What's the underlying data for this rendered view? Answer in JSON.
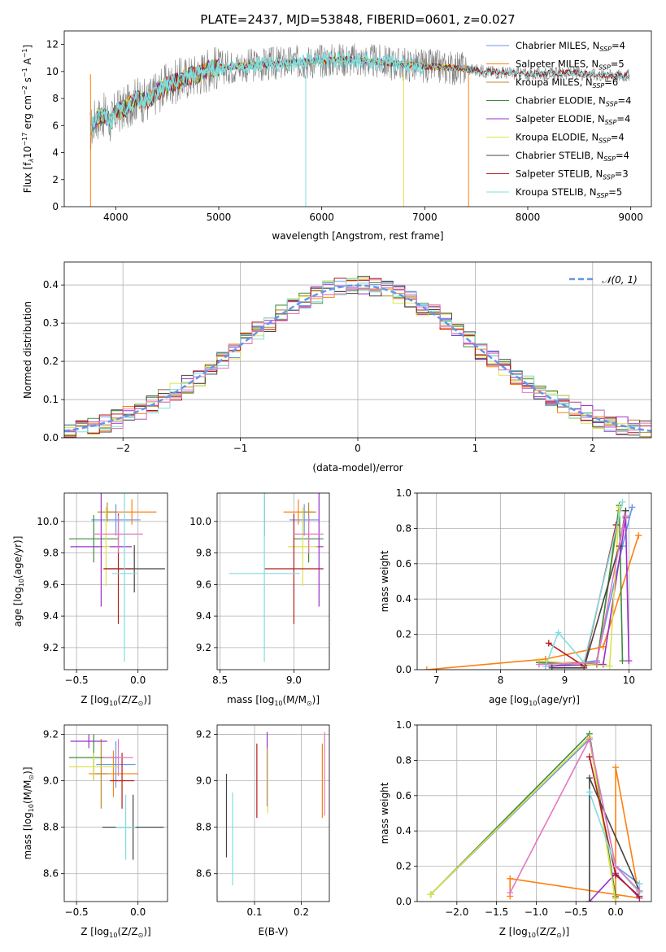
{
  "figure": {
    "title": "PLATE=2437, MJD=53848, FIBERID=0601, z=0.027"
  },
  "colors": [
    "#6495ed",
    "#ff7f0e",
    "#bc8a30",
    "#3e8a3e",
    "#9b30c8",
    "#dde24a",
    "#444444",
    "#b31b1b",
    "#7fdede",
    "#e377c2"
  ],
  "chart_data": [
    {
      "id": "spectrum",
      "type": "line",
      "xlabel": "wavelength [Angstrom, rest frame]",
      "ylabel": "Flux [f",
      "ylabel_parts": {
        "a": "Flux [f",
        "b": "λ",
        "c": "10",
        "d": "−17",
        "e": " erg cm",
        "f": "−2",
        "g": " s",
        "h": "−1",
        "i": " A",
        "j": "−1",
        "k": "]"
      },
      "xlim": [
        3500,
        9200
      ],
      "ylim": [
        0,
        13
      ],
      "xticks": [
        4000,
        5000,
        6000,
        7000,
        8000,
        9000
      ],
      "yticks": [
        0,
        2,
        4,
        6,
        8,
        10,
        12
      ],
      "grid": false,
      "legend_position": "top-right",
      "legend": [
        {
          "name": "Chabrier MILES, N",
          "sub": "SSP",
          "suffix": "=4",
          "color": "#6495ed"
        },
        {
          "name": "Salpeter MILES, N",
          "sub": "SSP",
          "suffix": "=5",
          "color": "#ff7f0e"
        },
        {
          "name": "Kroupa MILES, N",
          "sub": "SSP",
          "suffix": "=6",
          "color": "#bc8a30"
        },
        {
          "name": "Chabrier ELODIE, N",
          "sub": "SSP",
          "suffix": "=4",
          "color": "#3e8a3e"
        },
        {
          "name": "Salpeter ELODIE, N",
          "sub": "SSP",
          "suffix": "=4",
          "color": "#9b30c8"
        },
        {
          "name": "Kroupa ELODIE, N",
          "sub": "SSP",
          "suffix": "=4",
          "color": "#dde24a"
        },
        {
          "name": "Chabrier STELIB, N",
          "sub": "SSP",
          "suffix": "=4",
          "color": "#444444"
        },
        {
          "name": "Salpeter STELIB, N",
          "sub": "SSP",
          "suffix": "=3",
          "color": "#b31b1b"
        },
        {
          "name": "Kroupa STELIB, N",
          "sub": "SSP",
          "suffix": "=5",
          "color": "#7fdede"
        }
      ],
      "data_curve": {
        "x": [
          3750,
          3800,
          3900,
          3950,
          4000,
          4100,
          4200,
          4300,
          4400,
          4500,
          4600,
          4700,
          4800,
          4900,
          5000,
          5200,
          5400,
          5600,
          5800,
          6000,
          6200,
          6400,
          6600,
          6800,
          7000,
          7200,
          7400,
          7600,
          7800,
          8000,
          8200,
          8400,
          8600,
          8800,
          9000
        ],
        "y": [
          5.5,
          6.5,
          6.8,
          6.2,
          7.0,
          7.3,
          8.0,
          7.8,
          8.5,
          9.0,
          9.3,
          9.6,
          9.8,
          10.2,
          10.3,
          10.4,
          10.5,
          10.6,
          10.7,
          10.8,
          10.9,
          10.8,
          10.7,
          10.5,
          10.4,
          10.3,
          10.2,
          10.0,
          9.9,
          9.8,
          9.85,
          9.9,
          9.8,
          9.7,
          9.7
        ]
      },
      "noise_amplitude": 1.3
    },
    {
      "id": "residuals",
      "type": "bar",
      "xlabel": "(data-model)/error",
      "ylabel": "Normed distribution",
      "xlim": [
        -2.5,
        2.5
      ],
      "ylim": [
        0,
        0.46
      ],
      "xticks": [
        -2,
        -1,
        0,
        1,
        2
      ],
      "xtick_labels": [
        "−2",
        "−1",
        "0",
        "1",
        "2"
      ],
      "yticks": [
        0.0,
        0.1,
        0.2,
        0.3,
        0.4
      ],
      "ytick_labels": [
        "0.0",
        "0.1",
        "0.2",
        "0.3",
        "0.4"
      ],
      "grid": true,
      "legend_position": "top-right",
      "legend": [
        {
          "name": "𝒩(0, 1)",
          "color": "#6495ed",
          "style": "dashed"
        }
      ],
      "bin_width": 0.1,
      "series_count": 10
    },
    {
      "id": "age-vs-Z",
      "type": "scatter",
      "xlabel": "Z [log",
      "xlabel_parts": {
        "a": "Z [log",
        "b": "10",
        "c": "(Z/Z",
        "d": "⊙",
        "e": ")]"
      },
      "ylabel_parts": {
        "a": "age  [log",
        "b": "10",
        "c": "(age/yr)]"
      },
      "xlim": [
        -0.6,
        0.24
      ],
      "ylim": [
        9.06,
        10.18
      ],
      "xticks": [
        -0.5,
        0.0
      ],
      "xtick_labels": [
        "−0.5",
        "0.0"
      ],
      "yticks": [
        9.2,
        9.4,
        9.6,
        9.8,
        10.0
      ],
      "ytick_labels": [
        "9.2",
        "9.4",
        "9.6",
        "9.8",
        "10.0"
      ],
      "grid": true,
      "points": [
        {
          "x": -0.18,
          "y": 10.01,
          "xerr": 0.2,
          "yerr": 0.1,
          "color": "#6495ed"
        },
        {
          "x": -0.05,
          "y": 10.06,
          "xerr": 0.2,
          "yerr": 0.08,
          "color": "#ff7f0e"
        },
        {
          "x": -0.25,
          "y": 10.06,
          "xerr": 0.08,
          "yerr": 0.06,
          "color": "#bc8a30"
        },
        {
          "x": -0.36,
          "y": 9.89,
          "xerr": 0.2,
          "yerr": 0.15,
          "color": "#3e8a3e"
        },
        {
          "x": -0.3,
          "y": 9.84,
          "xerr": 0.25,
          "yerr": 0.38,
          "color": "#9b30c8"
        },
        {
          "x": -0.26,
          "y": 9.84,
          "xerr": 0.03,
          "yerr": 0.25,
          "color": "#dde24a"
        },
        {
          "x": -0.03,
          "y": 9.7,
          "xerr": 0.25,
          "yerr": 0.15,
          "color": "#444444"
        },
        {
          "x": -0.16,
          "y": 9.7,
          "xerr": 0.12,
          "yerr": 0.35,
          "color": "#b31b1b"
        },
        {
          "x": -0.11,
          "y": 9.67,
          "xerr": 0.1,
          "yerr": 0.56,
          "color": "#7fdede"
        },
        {
          "x": -0.16,
          "y": 9.92,
          "xerr": 0.2,
          "yerr": 0.12,
          "color": "#e377c2"
        }
      ]
    },
    {
      "id": "age-vs-mass",
      "type": "scatter",
      "xlabel_parts": {
        "a": "mass [log",
        "b": "10",
        "c": "(M/M",
        "d": "⊙",
        "e": ")]"
      },
      "xlim": [
        8.48,
        9.24
      ],
      "ylim": [
        9.06,
        10.18
      ],
      "xticks": [
        8.5,
        9.0
      ],
      "xtick_labels": [
        "8.5",
        "9.0"
      ],
      "yticks": [
        9.2,
        9.4,
        9.6,
        9.8,
        10.0
      ],
      "ytick_labels": [
        "9.2",
        "9.4",
        "9.6",
        "9.8",
        "10.0"
      ],
      "grid": true,
      "points": [
        {
          "x": 9.07,
          "y": 10.01,
          "xerr": 0.1,
          "yerr": 0.1,
          "color": "#6495ed"
        },
        {
          "x": 9.03,
          "y": 10.06,
          "xerr": 0.1,
          "yerr": 0.08,
          "color": "#ff7f0e"
        },
        {
          "x": 9.1,
          "y": 10.06,
          "xerr": 0.05,
          "yerr": 0.06,
          "color": "#bc8a30"
        },
        {
          "x": 9.1,
          "y": 9.89,
          "xerr": 0.1,
          "yerr": 0.15,
          "color": "#3e8a3e"
        },
        {
          "x": 9.17,
          "y": 9.84,
          "xerr": 0.03,
          "yerr": 0.38,
          "color": "#9b30c8"
        },
        {
          "x": 9.06,
          "y": 9.84,
          "xerr": 0.1,
          "yerr": 0.25,
          "color": "#dde24a"
        },
        {
          "x": 8.8,
          "y": 10.06,
          "xerr": 0.0,
          "yerr": 0.15,
          "color": "#444444"
        },
        {
          "x": 9.0,
          "y": 9.7,
          "xerr": 0.2,
          "yerr": 0.35,
          "color": "#b31b1b"
        },
        {
          "x": 8.8,
          "y": 9.67,
          "xerr": 0.24,
          "yerr": 0.56,
          "color": "#7fdede"
        },
        {
          "x": 9.1,
          "y": 9.92,
          "xerr": 0.1,
          "yerr": 0.12,
          "color": "#e377c2"
        }
      ]
    },
    {
      "id": "weight-vs-age",
      "type": "line",
      "xlabel_parts": {
        "a": "age  [log",
        "b": "10",
        "c": "(age/yr)]"
      },
      "ylabel": "mass weight",
      "xlim": [
        6.7,
        10.35
      ],
      "ylim": [
        0.0,
        1.0
      ],
      "xticks": [
        7,
        8,
        9,
        10
      ],
      "xtick_labels": [
        "7",
        "8",
        "9",
        "10"
      ],
      "yticks": [
        0.0,
        0.2,
        0.4,
        0.6,
        0.8,
        1.0
      ],
      "ytick_labels": [
        "0.0",
        "0.2",
        "0.4",
        "0.6",
        "0.8",
        "1.0"
      ],
      "grid": true,
      "series": [
        {
          "color": "#6495ed",
          "x": [
            8.8,
            9.5,
            9.9,
            10.05
          ],
          "y": [
            0.02,
            0.05,
            0.7,
            0.92
          ]
        },
        {
          "color": "#ff7f0e",
          "x": [
            6.85,
            8.7,
            9.6,
            10.15
          ],
          "y": [
            0.0,
            0.06,
            0.13,
            0.76
          ]
        },
        {
          "color": "#bc8a30",
          "x": [
            8.6,
            9.5,
            9.85
          ],
          "y": [
            0.04,
            0.04,
            0.9
          ]
        },
        {
          "color": "#3e8a3e",
          "x": [
            8.6,
            9.5,
            9.85,
            9.9
          ],
          "y": [
            0.04,
            0.03,
            0.93,
            0.05
          ]
        },
        {
          "color": "#9b30c8",
          "x": [
            8.7,
            9.6,
            9.95,
            10.0
          ],
          "y": [
            0.02,
            0.03,
            0.86,
            0.05
          ]
        },
        {
          "color": "#dde24a",
          "x": [
            8.6,
            9.7,
            9.85
          ],
          "y": [
            0.05,
            0.02,
            0.92
          ]
        },
        {
          "color": "#444444",
          "x": [
            8.8,
            9.3,
            9.85,
            9.95
          ],
          "y": [
            0.01,
            0.01,
            0.7,
            0.9
          ]
        },
        {
          "color": "#b31b1b",
          "x": [
            8.75,
            9.3,
            9.8
          ],
          "y": [
            0.15,
            0.02,
            0.82
          ]
        },
        {
          "color": "#7fdede",
          "x": [
            8.7,
            8.9,
            9.3,
            9.9
          ],
          "y": [
            0.02,
            0.21,
            0.04,
            0.95
          ]
        },
        {
          "color": "#e377c2",
          "x": [
            8.6,
            9.5,
            9.9,
            9.95
          ],
          "y": [
            0.03,
            0.04,
            0.8,
            0.87
          ]
        }
      ]
    },
    {
      "id": "mass-vs-Z",
      "type": "scatter",
      "xlabel_parts": {
        "a": "Z [log",
        "b": "10",
        "c": "(Z/Z",
        "d": "⊙",
        "e": ")]"
      },
      "ylabel_parts": {
        "a": "mass [log",
        "b": "10",
        "c": "(M/M",
        "d": "⊙",
        "e": ")]"
      },
      "xlim": [
        -0.6,
        0.24
      ],
      "ylim": [
        8.48,
        9.24
      ],
      "xticks": [
        -0.5,
        0.0
      ],
      "xtick_labels": [
        "−0.5",
        "0.0"
      ],
      "yticks": [
        8.6,
        8.8,
        9.0,
        9.2
      ],
      "ytick_labels": [
        "8.6",
        "8.8",
        "9.0",
        "9.2"
      ],
      "grid": true,
      "points": [
        {
          "x": -0.18,
          "y": 9.07,
          "xerr": 0.16,
          "yerr": 0.1,
          "color": "#6495ed"
        },
        {
          "x": -0.2,
          "y": 9.03,
          "xerr": 0.2,
          "yerr": 0.1,
          "color": "#ff7f0e"
        },
        {
          "x": -0.3,
          "y": 9.03,
          "xerr": 0.05,
          "yerr": 0.15,
          "color": "#bc8a30"
        },
        {
          "x": -0.36,
          "y": 9.1,
          "xerr": 0.2,
          "yerr": 0.1,
          "color": "#3e8a3e"
        },
        {
          "x": -0.4,
          "y": 9.17,
          "xerr": 0.15,
          "yerr": 0.03,
          "color": "#9b30c8"
        },
        {
          "x": -0.36,
          "y": 9.06,
          "xerr": 0.2,
          "yerr": 0.06,
          "color": "#dde24a"
        },
        {
          "x": -0.04,
          "y": 8.8,
          "xerr": 0.25,
          "yerr": 0.14,
          "color": "#444444"
        },
        {
          "x": -0.13,
          "y": 9.0,
          "xerr": 0.1,
          "yerr": 0.12,
          "color": "#b31b1b"
        },
        {
          "x": -0.1,
          "y": 8.8,
          "xerr": 0.08,
          "yerr": 0.14,
          "color": "#7fdede"
        },
        {
          "x": -0.16,
          "y": 9.1,
          "xerr": 0.12,
          "yerr": 0.08,
          "color": "#e377c2"
        }
      ]
    },
    {
      "id": "mass-vs-EBV",
      "type": "scatter",
      "xlabel": "E(B-V)",
      "xlim": [
        0.02,
        0.26
      ],
      "ylim": [
        8.48,
        9.24
      ],
      "xticks": [
        0.1,
        0.2
      ],
      "xtick_labels": [
        "0.1",
        "0.2"
      ],
      "yticks": [
        8.6,
        8.8,
        9.0,
        9.2
      ],
      "ytick_labels": [
        "8.6",
        "8.8",
        "9.0",
        "9.2"
      ],
      "grid": true,
      "points": [
        {
          "x": 0.04,
          "y": 8.85,
          "xerr": 0.0,
          "yerr": 0.18,
          "color": "#444444"
        },
        {
          "x": 0.053,
          "y": 8.75,
          "xerr": 0.0,
          "yerr": 0.2,
          "color": "#7fdede"
        },
        {
          "x": 0.105,
          "y": 9.0,
          "xerr": 0.0,
          "yerr": 0.16,
          "color": "#b31b1b"
        },
        {
          "x": 0.127,
          "y": 9.05,
          "xerr": 0.0,
          "yerr": 0.16,
          "color": "#9b30c8"
        },
        {
          "x": 0.128,
          "y": 9.0,
          "xerr": 0.0,
          "yerr": 0.14,
          "color": "#dde24a"
        },
        {
          "x": 0.245,
          "y": 9.0,
          "xerr": 0.0,
          "yerr": 0.16,
          "color": "#ff7f0e"
        },
        {
          "x": 0.25,
          "y": 9.03,
          "xerr": 0.0,
          "yerr": 0.18,
          "color": "#e377c2"
        }
      ]
    },
    {
      "id": "weight-vs-Z",
      "type": "line",
      "xlabel_parts": {
        "a": "Z [log",
        "b": "10",
        "c": "(Z/Z",
        "d": "⊙",
        "e": ")]"
      },
      "ylabel": "mass weight",
      "xlim": [
        -2.5,
        0.45
      ],
      "ylim": [
        0.0,
        1.0
      ],
      "xticks": [
        -2.0,
        -1.5,
        -1.0,
        -0.5,
        0.0
      ],
      "xtick_labels": [
        "−2.0",
        "−1.5",
        "−1.0",
        "−0.5",
        "0.0"
      ],
      "yticks": [
        0.0,
        0.2,
        0.4,
        0.6,
        0.8,
        1.0
      ],
      "ytick_labels": [
        "0.0",
        "0.2",
        "0.4",
        "0.6",
        "0.8",
        "1.0"
      ],
      "grid": true,
      "series": [
        {
          "color": "#6495ed",
          "x": [
            -2.33,
            -0.33,
            0.0,
            0.3
          ],
          "y": [
            0.04,
            0.92,
            0.2,
            0.1
          ]
        },
        {
          "color": "#ff7f0e",
          "x": [
            -1.33,
            -1.33,
            0.3,
            0.0,
            0.0
          ],
          "y": [
            0.03,
            0.13,
            0.02,
            0.76,
            0.02
          ]
        },
        {
          "color": "#bc8a30",
          "x": [
            -2.33,
            -0.33,
            0.0
          ],
          "y": [
            0.04,
            0.93,
            0.0
          ]
        },
        {
          "color": "#3e8a3e",
          "x": [
            -2.33,
            -0.33,
            0.0
          ],
          "y": [
            0.04,
            0.95,
            0.03
          ]
        },
        {
          "color": "#9b30c8",
          "x": [
            -0.33,
            0.0,
            0.3
          ],
          "y": [
            0.0,
            0.16,
            0.02
          ]
        },
        {
          "color": "#dde24a",
          "x": [
            -2.33,
            -0.33,
            0.0
          ],
          "y": [
            0.04,
            0.93,
            0.0
          ]
        },
        {
          "color": "#444444",
          "x": [
            -0.33,
            -0.33,
            0.3
          ],
          "y": [
            0.0,
            0.7,
            0.06
          ]
        },
        {
          "color": "#b31b1b",
          "x": [
            -0.33,
            0.0,
            0.3
          ],
          "y": [
            0.82,
            0.15,
            0.03
          ]
        },
        {
          "color": "#7fdede",
          "x": [
            -0.33,
            0.0,
            0.3,
            0.3
          ],
          "y": [
            0.62,
            0.2,
            0.05,
            0.1
          ]
        },
        {
          "color": "#e377c2",
          "x": [
            -1.33,
            -0.33,
            0.0,
            0.3
          ],
          "y": [
            0.05,
            0.92,
            0.2,
            0.06
          ]
        }
      ]
    }
  ]
}
